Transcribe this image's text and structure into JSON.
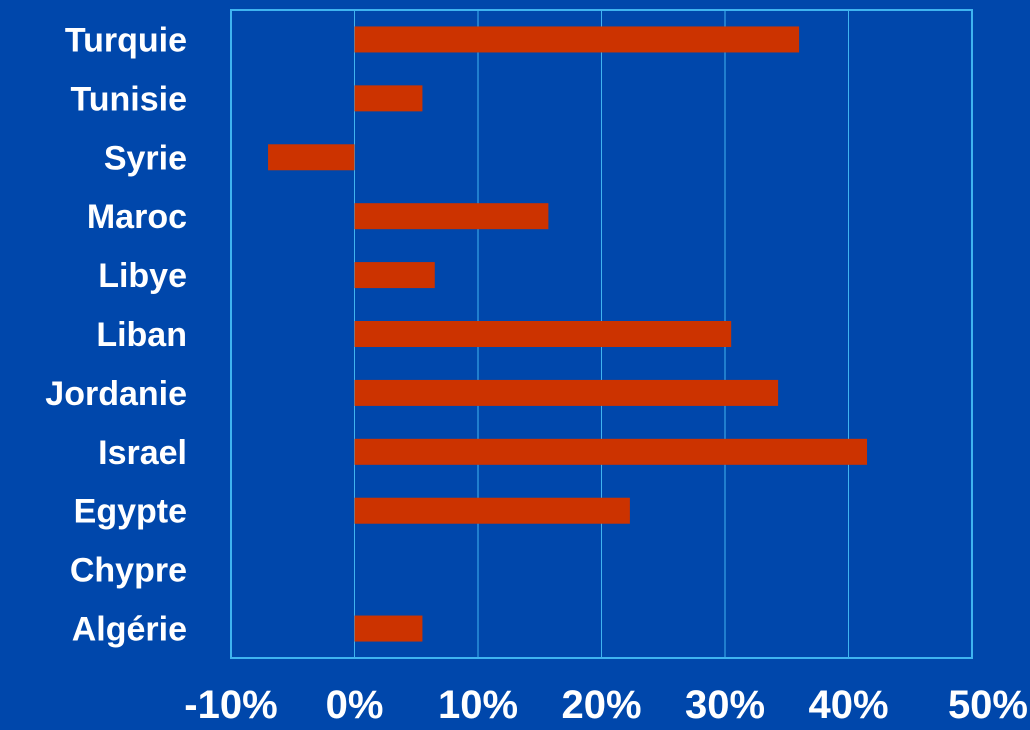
{
  "colors": {
    "background": "#0047AB",
    "plot_border": "#3FB4F0",
    "gridline": "#3FB4F0",
    "bar": "#CC3300",
    "text": "#FFFFFF"
  },
  "chart_data": {
    "type": "bar",
    "orientation": "horizontal",
    "categories": [
      "Turquie",
      "Tunisie",
      "Syrie",
      "Maroc",
      "Libye",
      "Liban",
      "Jordanie",
      "Israel",
      "Egypte",
      "Chypre",
      "Algérie"
    ],
    "values": [
      36,
      5.5,
      -7,
      15.7,
      6.5,
      30.5,
      34.3,
      41.5,
      22.3,
      0,
      5.5
    ],
    "value_unit": "%",
    "xlim": [
      -10,
      50
    ],
    "x_ticks": [
      -10,
      0,
      10,
      20,
      30,
      40,
      50
    ],
    "x_tick_labels": [
      "-10%",
      "0%",
      "10%",
      "20%",
      "30%",
      "40%",
      "50%"
    ],
    "title": "",
    "xlabel": "",
    "ylabel": "",
    "grid": "vertical",
    "legend": "none"
  }
}
